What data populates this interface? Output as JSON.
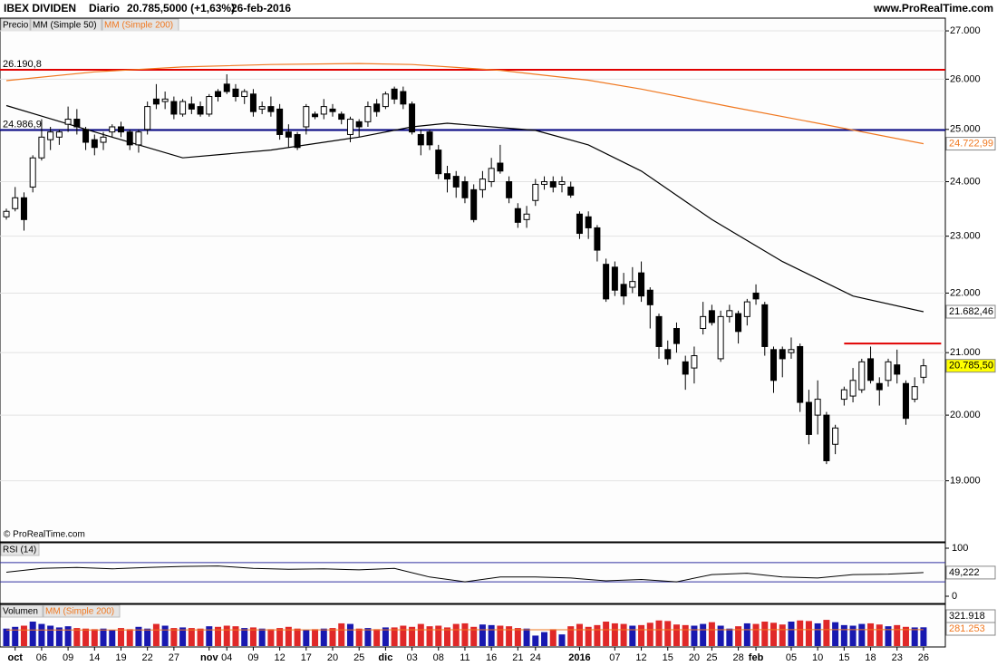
{
  "header": {
    "instrument": "IBEX DIVIDEN",
    "period": "Diario",
    "quote": "20.785,5000 (+1,63%)",
    "date": "26-feb-2016",
    "site": "www.ProRealTime.com",
    "watermark": "© ProRealTime.com"
  },
  "chart_data": [
    {
      "type": "candlestick",
      "name": "Precio",
      "up_color": "#ffffff",
      "down_color": "#000000",
      "log_scale": true,
      "grid": true,
      "categories": [
        null,
        "oct",
        null,
        null,
        "06",
        null,
        null,
        "09",
        null,
        null,
        "14",
        null,
        null,
        "19",
        null,
        null,
        "22",
        null,
        null,
        "27",
        null,
        null,
        null,
        "nov",
        null,
        "04",
        null,
        null,
        "09",
        null,
        null,
        "12",
        null,
        null,
        "17",
        null,
        null,
        "20",
        null,
        null,
        "25",
        null,
        null,
        "dic",
        null,
        null,
        "03",
        null,
        null,
        "08",
        null,
        null,
        "11",
        null,
        null,
        "16",
        null,
        null,
        "21",
        null,
        "24",
        null,
        null,
        null,
        null,
        "2016",
        null,
        null,
        null,
        "07",
        null,
        null,
        "12",
        null,
        null,
        "15",
        null,
        null,
        "20",
        null,
        "25",
        null,
        null,
        "28",
        null,
        "feb",
        null,
        null,
        null,
        "05",
        null,
        null,
        "10",
        null,
        null,
        "15",
        null,
        null,
        "18",
        null,
        null,
        "23",
        null,
        null,
        "26"
      ],
      "ohlc": [
        [
          23350,
          23500,
          23300,
          23450
        ],
        [
          23500,
          23900,
          23450,
          23700
        ],
        [
          23700,
          23800,
          23100,
          23300
        ],
        [
          23900,
          24500,
          23800,
          24450
        ],
        [
          24450,
          25200,
          24400,
          24850
        ],
        [
          24800,
          25050,
          24600,
          24950
        ],
        [
          24850,
          25000,
          24700,
          24950
        ],
        [
          25100,
          25450,
          24950,
          25200
        ],
        [
          25200,
          25400,
          24900,
          25050
        ],
        [
          25000,
          25050,
          24600,
          24750
        ],
        [
          24800,
          24900,
          24500,
          24650
        ],
        [
          24750,
          24950,
          24600,
          24850
        ],
        [
          24950,
          25100,
          24850,
          25050
        ],
        [
          25050,
          25150,
          24850,
          24950
        ],
        [
          24950,
          25000,
          24600,
          24700
        ],
        [
          24700,
          25000,
          24550,
          24950
        ],
        [
          25000,
          25550,
          24900,
          25450
        ],
        [
          25600,
          25900,
          25400,
          25500
        ],
        [
          25550,
          25750,
          25400,
          25600
        ],
        [
          25550,
          25650,
          25200,
          25300
        ],
        [
          25300,
          25600,
          25250,
          25550
        ],
        [
          25500,
          25650,
          25300,
          25400
        ],
        [
          25450,
          25550,
          25250,
          25300
        ],
        [
          25300,
          25700,
          25250,
          25650
        ],
        [
          25750,
          25800,
          25550,
          25650
        ],
        [
          25900,
          26100,
          25700,
          25750
        ],
        [
          25800,
          25900,
          25550,
          25650
        ],
        [
          25650,
          25800,
          25500,
          25750
        ],
        [
          25700,
          25800,
          25250,
          25350
        ],
        [
          25400,
          25550,
          25300,
          25450
        ],
        [
          25450,
          25650,
          25250,
          25350
        ],
        [
          25400,
          25500,
          24800,
          24900
        ],
        [
          24950,
          25100,
          24650,
          24850
        ],
        [
          24900,
          24950,
          24600,
          24650
        ],
        [
          25050,
          25500,
          24900,
          25450
        ],
        [
          25300,
          25350,
          25200,
          25250
        ],
        [
          25300,
          25600,
          25200,
          25450
        ],
        [
          25400,
          25500,
          25250,
          25350
        ],
        [
          25300,
          25350,
          25100,
          25200
        ],
        [
          24900,
          25250,
          24750,
          25200
        ],
        [
          25150,
          25200,
          24850,
          25050
        ],
        [
          25150,
          25550,
          25050,
          25450
        ],
        [
          25500,
          25600,
          25250,
          25350
        ],
        [
          25450,
          25750,
          25400,
          25700
        ],
        [
          25800,
          25850,
          25500,
          25600
        ],
        [
          25750,
          25850,
          25400,
          25500
        ],
        [
          25500,
          25550,
          24900,
          24950
        ],
        [
          24900,
          25000,
          24500,
          24700
        ],
        [
          24950,
          25000,
          24600,
          24700
        ],
        [
          24600,
          24700,
          24050,
          24150
        ],
        [
          24150,
          24300,
          23800,
          24050
        ],
        [
          24100,
          24200,
          23700,
          23900
        ],
        [
          24000,
          24100,
          23600,
          23700
        ],
        [
          23850,
          23950,
          23250,
          23300
        ],
        [
          23850,
          24200,
          23700,
          24050
        ],
        [
          24000,
          24450,
          23900,
          24250
        ],
        [
          24350,
          24700,
          24150,
          24200
        ],
        [
          24000,
          24100,
          23600,
          23700
        ],
        [
          23500,
          23600,
          23150,
          23250
        ],
        [
          23300,
          23550,
          23150,
          23400
        ],
        [
          23650,
          24050,
          23550,
          23950
        ],
        [
          23950,
          24100,
          23850,
          24000
        ],
        [
          24000,
          24100,
          23800,
          23900
        ],
        [
          23950,
          24100,
          23800,
          24000
        ],
        [
          23900,
          24000,
          23700,
          23750
        ],
        [
          23400,
          23450,
          22950,
          23050
        ],
        [
          23350,
          23450,
          22950,
          23150
        ],
        [
          23150,
          23200,
          22550,
          22750
        ],
        [
          22500,
          22600,
          21850,
          21900
        ],
        [
          22450,
          22550,
          21950,
          22050
        ],
        [
          22150,
          22350,
          21800,
          21950
        ],
        [
          22100,
          22450,
          22000,
          22200
        ],
        [
          22350,
          22550,
          21850,
          21950
        ],
        [
          22050,
          22100,
          21400,
          21800
        ],
        [
          21600,
          21650,
          20900,
          21100
        ],
        [
          21050,
          21200,
          20800,
          20900
        ],
        [
          21400,
          21500,
          21000,
          21150
        ],
        [
          20850,
          20950,
          20400,
          20650
        ],
        [
          20750,
          21100,
          20500,
          20950
        ],
        [
          21400,
          21850,
          21300,
          21600
        ],
        [
          21700,
          21800,
          21450,
          21500
        ],
        [
          20900,
          21700,
          20850,
          21600
        ],
        [
          21600,
          21800,
          21500,
          21700
        ],
        [
          21650,
          21700,
          21150,
          21350
        ],
        [
          21600,
          21900,
          21450,
          21850
        ],
        [
          22000,
          22150,
          21800,
          21900
        ],
        [
          21800,
          21850,
          20950,
          21100
        ],
        [
          21050,
          21100,
          20350,
          20550
        ],
        [
          21050,
          21100,
          20600,
          20900
        ],
        [
          21000,
          21250,
          20900,
          21050
        ],
        [
          21100,
          21150,
          20050,
          20200
        ],
        [
          20200,
          20400,
          19550,
          19700
        ],
        [
          20000,
          20550,
          19700,
          20250
        ],
        [
          20000,
          20050,
          19250,
          19300
        ],
        [
          19550,
          19850,
          19400,
          19800
        ],
        [
          20250,
          20450,
          20150,
          20400
        ],
        [
          20300,
          20750,
          20200,
          20550
        ],
        [
          20400,
          20900,
          20350,
          20850
        ],
        [
          20900,
          21100,
          20500,
          20550
        ],
        [
          20500,
          20600,
          20150,
          20400
        ],
        [
          20550,
          20900,
          20450,
          20850
        ],
        [
          20800,
          21050,
          20500,
          20650
        ],
        [
          20500,
          20550,
          19850,
          19950
        ],
        [
          20250,
          20600,
          20200,
          20450
        ],
        [
          20600,
          20900,
          20500,
          20785.5
        ]
      ],
      "close_label": "20.785,50",
      "close_label_color": "#ffff00",
      "series": [
        {
          "name": "MM (Simple 50)",
          "color": "#000000",
          "x": [
            0,
            10,
            20,
            30,
            40,
            46,
            50,
            60,
            66,
            72,
            80,
            88,
            96,
            104
          ],
          "values": [
            25470,
            24950,
            24450,
            24600,
            24850,
            25050,
            25120,
            24980,
            24700,
            24200,
            23300,
            22550,
            21950,
            21682.46
          ],
          "value_label": "21.682,46"
        },
        {
          "name": "MM (Simple 200)",
          "color": "#f07820",
          "x": [
            0,
            10,
            20,
            30,
            40,
            46,
            56,
            66,
            72,
            82,
            92,
            104
          ],
          "values": [
            25970,
            26150,
            26250,
            26300,
            26320,
            26300,
            26180,
            25980,
            25800,
            25450,
            25120,
            24722.99
          ],
          "value_label": "24.722,99"
        }
      ],
      "lines": [
        {
          "value": 26190.8,
          "label": "26.190,8",
          "color": "#e00000"
        },
        {
          "value": 24986.9,
          "label": "24.986,9",
          "color": "#000080"
        },
        {
          "value": 21150,
          "color": "#e00000",
          "x": [
            95,
            106
          ]
        }
      ],
      "ylim": [
        18115,
        27270
      ],
      "yticks": [
        {
          "value": 19000,
          "label": "19.000"
        },
        {
          "value": 20000,
          "label": "20.000"
        },
        {
          "value": 21000,
          "label": "21.000"
        },
        {
          "value": 22000,
          "label": "22.000"
        },
        {
          "value": 23000,
          "label": "23.000"
        },
        {
          "value": 24000,
          "label": "24.000"
        },
        {
          "value": 25000,
          "label": "25.000"
        },
        {
          "value": 26000,
          "label": "26.000"
        },
        {
          "value": 27000,
          "label": "27.000"
        }
      ]
    },
    {
      "type": "line",
      "title": "RSI (14)",
      "color": "#000000",
      "level_color": "#3030a0",
      "x": [
        0,
        4,
        8,
        12,
        16,
        20,
        24,
        28,
        32,
        36,
        40,
        44,
        48,
        52,
        56,
        60,
        64,
        68,
        72,
        76,
        80,
        84,
        88,
        92,
        96,
        100,
        104
      ],
      "values": [
        50,
        58,
        60,
        57,
        60,
        62,
        63,
        58,
        56,
        57,
        55,
        58,
        40,
        30,
        40,
        40,
        38,
        32,
        35,
        30,
        45,
        48,
        40,
        38,
        45,
        46,
        49.222
      ],
      "value_label": "49,222",
      "levels": [
        30,
        70
      ],
      "ylim": [
        0,
        100
      ],
      "yticks": [
        0,
        100
      ]
    },
    {
      "type": "bar",
      "title": "Volumen",
      "up_color": "#1818b0",
      "down_color": "#e02828",
      "values": [
        300000,
        330000,
        350000,
        420000,
        380000,
        350000,
        320000,
        340000,
        310000,
        300000,
        290000,
        300000,
        280000,
        310000,
        290000,
        330000,
        300000,
        380000,
        350000,
        310000,
        320000,
        310000,
        300000,
        340000,
        330000,
        350000,
        340000,
        310000,
        320000,
        300000,
        290000,
        310000,
        330000,
        300000,
        280000,
        290000,
        300000,
        310000,
        390000,
        380000,
        300000,
        310000,
        290000,
        320000,
        320000,
        350000,
        330000,
        380000,
        340000,
        350000,
        320000,
        380000,
        390000,
        330000,
        370000,
        360000,
        350000,
        340000,
        310000,
        300000,
        180000,
        240000,
        290000,
        200000,
        340000,
        380000,
        330000,
        360000,
        420000,
        390000,
        380000,
        350000,
        360000,
        400000,
        440000,
        430000,
        370000,
        360000,
        350000,
        380000,
        410000,
        350000,
        300000,
        340000,
        390000,
        380000,
        420000,
        400000,
        370000,
        420000,
        440000,
        430000,
        390000,
        450000,
        410000,
        360000,
        350000,
        380000,
        390000,
        370000,
        340000,
        360000,
        330000,
        320000,
        321918
      ],
      "value_label": "321.918",
      "series": [
        {
          "name": "MM (Simple 200)",
          "color": "#f07820",
          "x": [
            0,
            52,
            104
          ],
          "values": [
            275000,
            280000,
            281253
          ],
          "value_label": "281.253"
        }
      ],
      "ylim": [
        0,
        700000
      ]
    }
  ]
}
